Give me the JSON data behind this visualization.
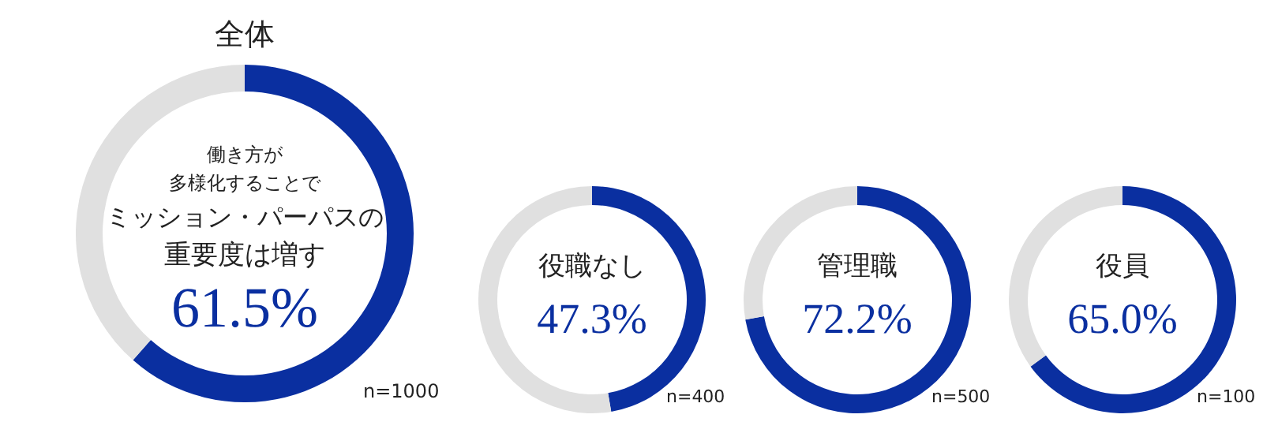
{
  "chart_data": [
    {
      "type": "donut",
      "title": "全体",
      "categories": [
        null,
        null
      ],
      "values": [
        61.5,
        38.5
      ],
      "colors": [
        "#0a2fa0",
        "#e0e0e0"
      ],
      "value_labels": [
        "61.5%",
        null
      ],
      "annotations": [
        "働き方が",
        "多様化することで",
        "ミッション・パーパスの",
        "重要度は増す",
        "n=1000"
      ],
      "legend": false
    },
    {
      "type": "donut",
      "title": "役職なし",
      "categories": [
        null,
        null
      ],
      "values": [
        47.3,
        52.7
      ],
      "colors": [
        "#0a2fa0",
        "#e0e0e0"
      ],
      "value_labels": [
        "47.3%",
        null
      ],
      "annotations": [
        "n=400"
      ],
      "legend": false
    },
    {
      "type": "donut",
      "title": "管理職",
      "categories": [
        null,
        null
      ],
      "values": [
        72.2,
        27.8
      ],
      "colors": [
        "#0a2fa0",
        "#e0e0e0"
      ],
      "value_labels": [
        "72.2%",
        null
      ],
      "annotations": [
        "n=500"
      ],
      "legend": false
    },
    {
      "type": "donut",
      "title": "役員",
      "categories": [
        null,
        null
      ],
      "values": [
        65.0,
        35.0
      ],
      "colors": [
        "#0a2fa0",
        "#e0e0e0"
      ],
      "value_labels": [
        "65.0%",
        null
      ],
      "annotations": [
        "n=100"
      ],
      "legend": false
    }
  ]
}
